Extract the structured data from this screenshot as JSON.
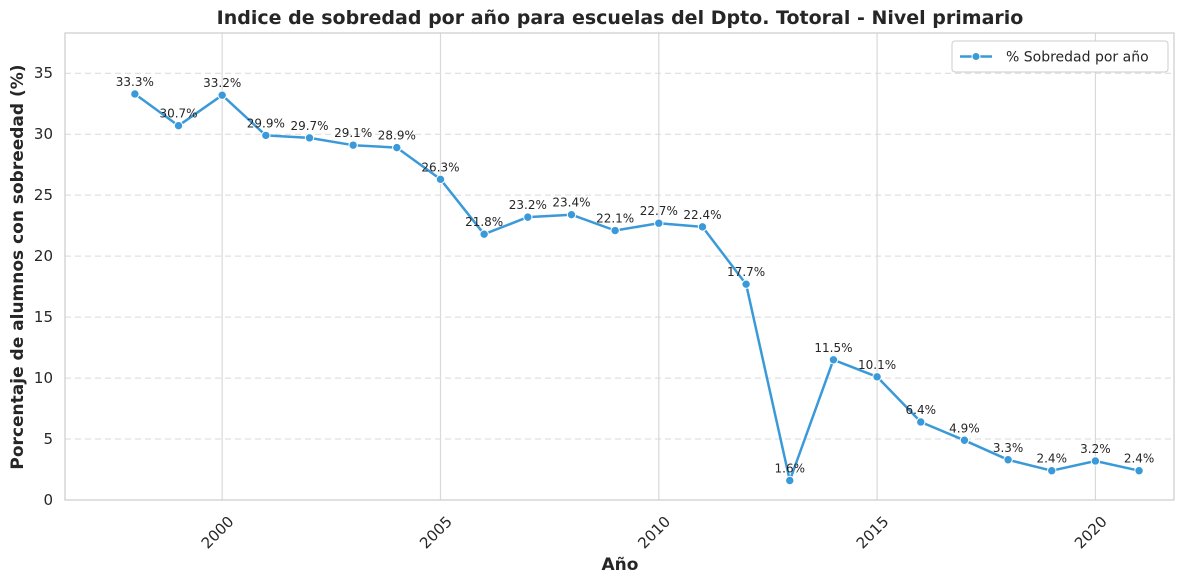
{
  "chart_data": {
    "type": "line",
    "title": "Indice de sobredad por año para escuelas del Dpto. Totoral - Nivel primario",
    "xlabel": "Año",
    "ylabel": "Porcentaje de alumnos con sobreedad (%)",
    "xlim": [
      1996.4,
      2021.8
    ],
    "ylim": [
      0,
      38.3
    ],
    "xticks": [
      2000,
      2005,
      2010,
      2015,
      2020
    ],
    "yticks": [
      0,
      5,
      10,
      15,
      20,
      25,
      30,
      35
    ],
    "grid": {
      "x": "solid",
      "y": "dashed"
    },
    "legend_position": "top-right",
    "color": "#3a9ad9",
    "series": [
      {
        "name": "% Sobredad por año",
        "x": [
          1998,
          1999,
          2000,
          2001,
          2002,
          2003,
          2004,
          2005,
          2006,
          2007,
          2008,
          2009,
          2010,
          2011,
          2012,
          2013,
          2014,
          2015,
          2016,
          2017,
          2018,
          2019,
          2020,
          2021
        ],
        "y": [
          33.3,
          30.7,
          33.2,
          29.9,
          29.7,
          29.1,
          28.9,
          26.3,
          21.8,
          23.2,
          23.4,
          22.1,
          22.7,
          22.4,
          17.7,
          1.6,
          11.5,
          10.1,
          6.4,
          4.9,
          3.3,
          2.4,
          3.2,
          2.4
        ],
        "labels": [
          "33.3%",
          "30.7%",
          "33.2%",
          "29.9%",
          "29.7%",
          "29.1%",
          "28.9%",
          "26.3%",
          "21.8%",
          "23.2%",
          "23.4%",
          "22.1%",
          "22.7%",
          "22.4%",
          "17.7%",
          "1.6%",
          "11.5%",
          "10.1%",
          "6.4%",
          "4.9%",
          "3.3%",
          "2.4%",
          "3.2%",
          "2.4%"
        ]
      }
    ]
  }
}
